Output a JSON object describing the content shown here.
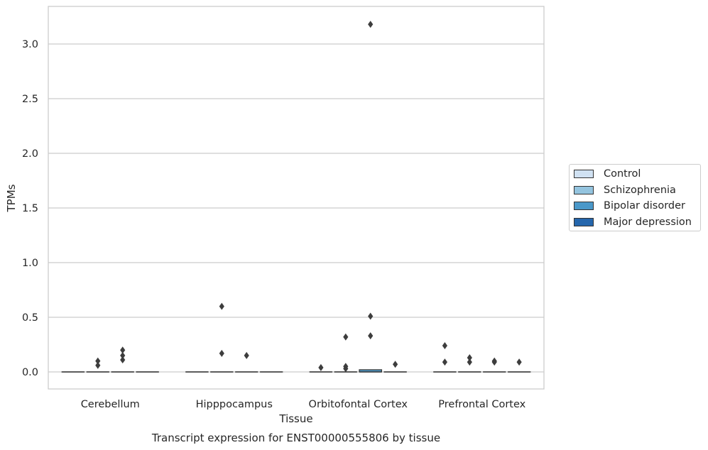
{
  "chart_data": {
    "type": "boxplot",
    "title": "Transcript expression for ENST00000555806 by tissue",
    "xlabel": "Tissue",
    "ylabel": "TPMs",
    "ylim": [
      -0.15,
      3.35
    ],
    "yticks": [
      "0.0",
      "0.5",
      "1.0",
      "1.5",
      "2.0",
      "2.5",
      "3.0"
    ],
    "categories": [
      "Cerebellum",
      "Hipppocampus",
      "Orbitofontal Cortex",
      "Prefrontal Cortex"
    ],
    "grid": true,
    "legend_position": "right",
    "series": [
      {
        "name": "Control",
        "color": "#d0e1f2",
        "boxes": [
          {
            "q1": 0,
            "median": 0,
            "q3": 0,
            "outliers": []
          },
          {
            "q1": 0,
            "median": 0,
            "q3": 0,
            "outliers": []
          },
          {
            "q1": 0,
            "median": 0,
            "q3": 0,
            "outliers": [
              0.04
            ]
          },
          {
            "q1": 0,
            "median": 0,
            "q3": 0,
            "outliers": [
              0.24,
              0.09
            ]
          }
        ]
      },
      {
        "name": "Schizophrenia",
        "color": "#94c4df",
        "boxes": [
          {
            "q1": 0,
            "median": 0,
            "q3": 0,
            "outliers": [
              0.1,
              0.06
            ]
          },
          {
            "q1": 0,
            "median": 0,
            "q3": 0,
            "outliers": [
              0.6,
              0.17
            ]
          },
          {
            "q1": 0,
            "median": 0,
            "q3": 0,
            "outliers": [
              0.32,
              0.05,
              0.03
            ]
          },
          {
            "q1": 0,
            "median": 0,
            "q3": 0,
            "outliers": [
              0.13,
              0.09
            ]
          }
        ]
      },
      {
        "name": "Bipolar disorder",
        "color": "#4a98c9",
        "boxes": [
          {
            "q1": 0,
            "median": 0,
            "q3": 0,
            "outliers": [
              0.2,
              0.15,
              0.11
            ]
          },
          {
            "q1": 0,
            "median": 0,
            "q3": 0,
            "outliers": [
              0.15
            ]
          },
          {
            "q1": 0,
            "median": 0,
            "q3": 0.02,
            "outliers": [
              3.18,
              0.51,
              0.33
            ]
          },
          {
            "q1": 0,
            "median": 0,
            "q3": 0,
            "outliers": [
              0.1,
              0.09
            ]
          }
        ]
      },
      {
        "name": "Major depression",
        "color": "#2566ac",
        "boxes": [
          {
            "q1": 0,
            "median": 0,
            "q3": 0,
            "outliers": []
          },
          {
            "q1": 0,
            "median": 0,
            "q3": 0,
            "outliers": []
          },
          {
            "q1": 0,
            "median": 0,
            "q3": 0,
            "outliers": [
              0.07
            ]
          },
          {
            "q1": 0,
            "median": 0,
            "q3": 0,
            "outliers": [
              0.09
            ]
          }
        ]
      }
    ]
  }
}
